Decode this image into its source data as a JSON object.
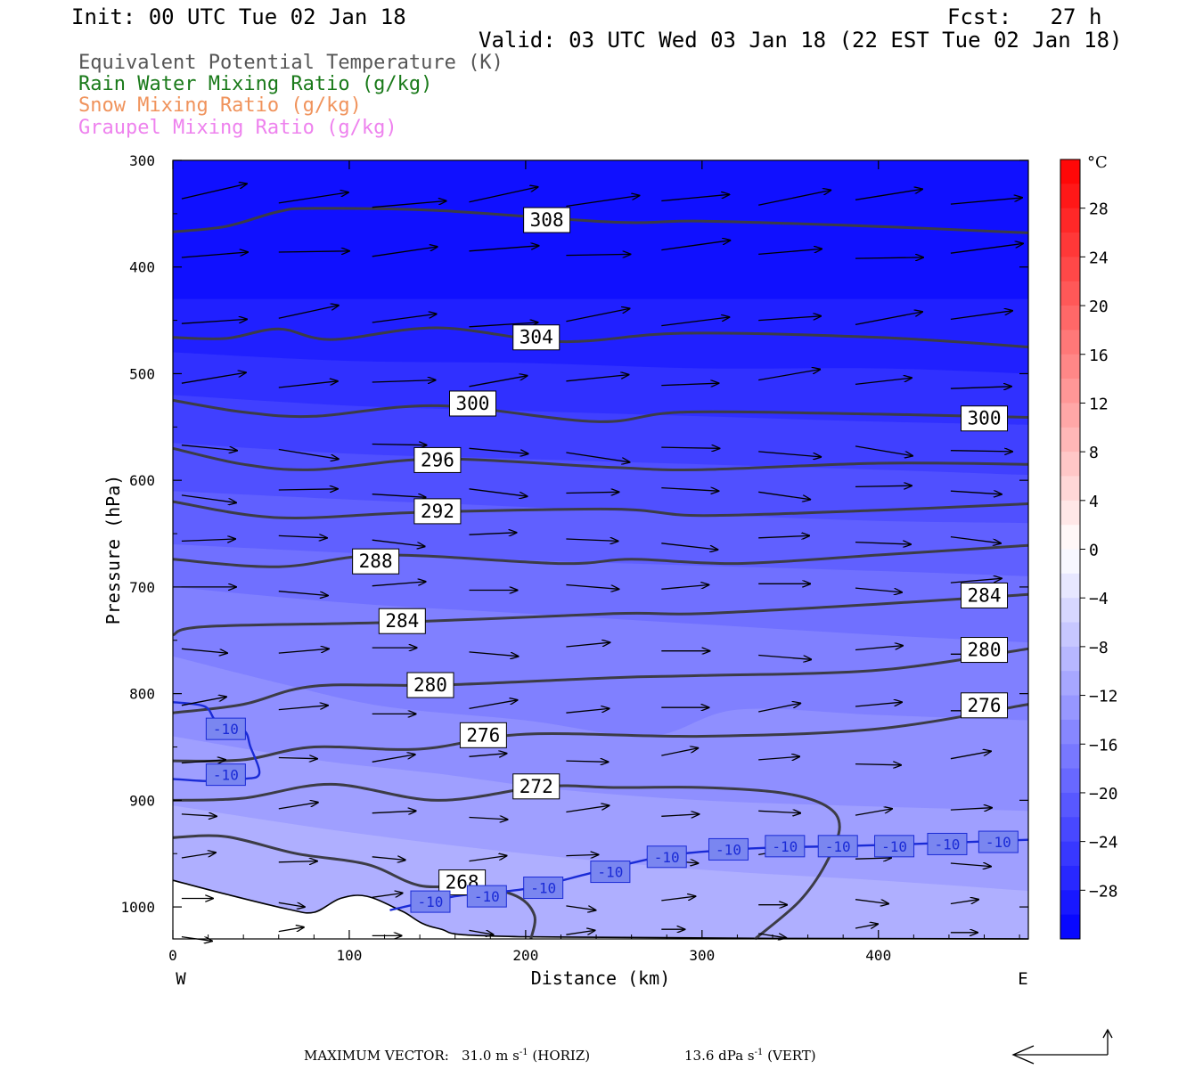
{
  "header": {
    "init": "Init: 00 UTC Tue 02 Jan 18",
    "fcst": "Fcst:   27 h",
    "valid": "Valid: 03 UTC Wed 03 Jan 18 (22 EST Tue 02 Jan 18)"
  },
  "fields": [
    {
      "label": "Equivalent Potential Temperature (K)",
      "color": "#555555"
    },
    {
      "label": "Rain Water Mixing Ratio (g/kg)",
      "color": "#1a7a1a"
    },
    {
      "label": "Snow Mixing Ratio (g/kg)",
      "color": "#f0935c"
    },
    {
      "label": "Graupel Mixing Ratio (g/kg)",
      "color": "#ee82ee"
    }
  ],
  "footer": {
    "label": "MAXIMUM VECTOR:",
    "horiz_value": "31.0 m s",
    "horiz_exp": "-1",
    "horiz_unit": "(HORIZ)",
    "vert_value": "13.6 dPa s",
    "vert_exp": "-1",
    "vert_unit": "(VERT)"
  },
  "chart_data": {
    "type": "cross-section",
    "xlabel": "Distance (km)",
    "ylabel": "Pressure (hPa)",
    "xlim": [
      0,
      485
    ],
    "ylim": [
      300,
      1030
    ],
    "x_ticks": [
      0,
      100,
      200,
      300,
      400
    ],
    "y_ticks": [
      300,
      400,
      500,
      600,
      700,
      800,
      900,
      1000
    ],
    "x_end_labels": {
      "left": "W",
      "right": "E"
    },
    "colorbar": {
      "unit": "°C",
      "ticks": [
        28,
        24,
        20,
        16,
        12,
        8,
        4,
        0,
        -4,
        -8,
        -12,
        -16,
        -20,
        -24,
        -28
      ],
      "range": [
        -32,
        32
      ]
    },
    "temperature_fill_levels": [
      -12,
      -14,
      -16,
      -18,
      -20,
      -22,
      -24,
      -26,
      -28,
      -30
    ],
    "temperature_boundaries": [
      {
        "level": -30,
        "points": [
          [
            0,
            430
          ],
          [
            485,
            430
          ]
        ]
      },
      {
        "level": -28,
        "points": [
          [
            0,
            480
          ],
          [
            100,
            488
          ],
          [
            200,
            490
          ],
          [
            300,
            495
          ],
          [
            400,
            495
          ],
          [
            485,
            500
          ]
        ]
      },
      {
        "level": -26,
        "points": [
          [
            0,
            520
          ],
          [
            100,
            530
          ],
          [
            200,
            535
          ],
          [
            300,
            540
          ],
          [
            400,
            545
          ],
          [
            485,
            548
          ]
        ]
      },
      {
        "level": -24,
        "points": [
          [
            0,
            565
          ],
          [
            100,
            575
          ],
          [
            200,
            580
          ],
          [
            300,
            585
          ],
          [
            400,
            590
          ],
          [
            485,
            595
          ]
        ]
      },
      {
        "level": -22,
        "points": [
          [
            0,
            610
          ],
          [
            100,
            618
          ],
          [
            200,
            625
          ],
          [
            300,
            632
          ],
          [
            400,
            638
          ],
          [
            485,
            640
          ]
        ]
      },
      {
        "level": -20,
        "points": [
          [
            0,
            660
          ],
          [
            100,
            668
          ],
          [
            200,
            675
          ],
          [
            300,
            680
          ],
          [
            400,
            685
          ],
          [
            485,
            690
          ]
        ]
      },
      {
        "level": -18,
        "points": [
          [
            0,
            700
          ],
          [
            100,
            715
          ],
          [
            200,
            725
          ],
          [
            300,
            735
          ],
          [
            400,
            745
          ],
          [
            485,
            752
          ]
        ]
      },
      {
        "level": -16,
        "points": [
          [
            0,
            765
          ],
          [
            60,
            790
          ],
          [
            120,
            812
          ],
          [
            200,
            825
          ],
          [
            270,
            840
          ],
          [
            320,
            815
          ],
          [
            400,
            820
          ],
          [
            485,
            825
          ]
        ]
      },
      {
        "level": -14,
        "points": [
          [
            0,
            840
          ],
          [
            80,
            862
          ],
          [
            150,
            875
          ],
          [
            220,
            890
          ],
          [
            300,
            900
          ],
          [
            380,
            905
          ],
          [
            485,
            910
          ]
        ]
      },
      {
        "level": -12,
        "points": [
          [
            0,
            905
          ],
          [
            100,
            930
          ],
          [
            200,
            950
          ],
          [
            300,
            965
          ],
          [
            400,
            975
          ],
          [
            485,
            985
          ]
        ]
      }
    ],
    "theta_e_contours": [
      {
        "label": "308",
        "points": [
          [
            0,
            367
          ],
          [
            30,
            362
          ],
          [
            60,
            348
          ],
          [
            80,
            345
          ],
          [
            150,
            347
          ],
          [
            250,
            358
          ],
          [
            300,
            357
          ],
          [
            400,
            362
          ],
          [
            485,
            368
          ]
        ],
        "label_positions": [
          [
            212,
            356
          ]
        ]
      },
      {
        "label": "304",
        "points": [
          [
            0,
            466
          ],
          [
            30,
            467
          ],
          [
            60,
            458
          ],
          [
            90,
            468
          ],
          [
            150,
            457
          ],
          [
            220,
            470
          ],
          [
            290,
            462
          ],
          [
            400,
            466
          ],
          [
            485,
            475
          ]
        ],
        "label_positions": [
          [
            206,
            466
          ]
        ]
      },
      {
        "label": "300",
        "points": [
          [
            0,
            525
          ],
          [
            40,
            536
          ],
          [
            80,
            540
          ],
          [
            150,
            530
          ],
          [
            240,
            545
          ],
          [
            290,
            536
          ],
          [
            400,
            538
          ],
          [
            485,
            541
          ]
        ],
        "label_positions": [
          [
            170,
            528
          ],
          [
            460,
            542
          ]
        ]
      },
      {
        "label": "296",
        "points": [
          [
            0,
            570
          ],
          [
            40,
            585
          ],
          [
            80,
            590
          ],
          [
            150,
            580
          ],
          [
            250,
            588
          ],
          [
            300,
            590
          ],
          [
            400,
            584
          ],
          [
            485,
            585
          ]
        ],
        "label_positions": [
          [
            150,
            581
          ]
        ]
      },
      {
        "label": "292",
        "points": [
          [
            0,
            620
          ],
          [
            60,
            635
          ],
          [
            140,
            630
          ],
          [
            250,
            627
          ],
          [
            300,
            633
          ],
          [
            400,
            628
          ],
          [
            485,
            622
          ]
        ],
        "label_positions": [
          [
            150,
            629
          ]
        ]
      },
      {
        "label": "288",
        "points": [
          [
            0,
            674
          ],
          [
            60,
            681
          ],
          [
            120,
            670
          ],
          [
            220,
            678
          ],
          [
            260,
            674
          ],
          [
            320,
            678
          ],
          [
            400,
            670
          ],
          [
            485,
            661
          ]
        ],
        "label_positions": [
          [
            115,
            676
          ]
        ]
      },
      {
        "label": "284",
        "points": [
          [
            0,
            745
          ],
          [
            20,
            737
          ],
          [
            130,
            733
          ],
          [
            250,
            725
          ],
          [
            300,
            725
          ],
          [
            400,
            716
          ],
          [
            485,
            707
          ]
        ],
        "label_positions": [
          [
            130,
            732
          ],
          [
            460,
            708
          ]
        ]
      },
      {
        "label": "280",
        "points": [
          [
            0,
            818
          ],
          [
            40,
            810
          ],
          [
            80,
            793
          ],
          [
            150,
            792
          ],
          [
            250,
            785
          ],
          [
            300,
            783
          ],
          [
            400,
            778
          ],
          [
            485,
            758
          ]
        ],
        "label_positions": [
          [
            146,
            792
          ],
          [
            460,
            759
          ]
        ]
      },
      {
        "label": "276",
        "points": [
          [
            0,
            863
          ],
          [
            40,
            862
          ],
          [
            80,
            850
          ],
          [
            140,
            852
          ],
          [
            200,
            838
          ],
          [
            300,
            840
          ],
          [
            400,
            833
          ],
          [
            485,
            810
          ]
        ],
        "label_positions": [
          [
            176,
            839
          ],
          [
            460,
            811
          ]
        ]
      },
      {
        "label": "272",
        "points": [
          [
            0,
            900
          ],
          [
            40,
            898
          ],
          [
            90,
            885
          ],
          [
            150,
            900
          ],
          [
            210,
            887
          ],
          [
            250,
            888
          ],
          [
            300,
            888
          ],
          [
            345,
            893
          ],
          [
            370,
            905
          ],
          [
            378,
            925
          ],
          [
            370,
            960
          ],
          [
            355,
            995
          ],
          [
            330,
            1030
          ]
        ],
        "label_positions": [
          [
            206,
            887
          ]
        ]
      },
      {
        "label": "268",
        "points": [
          [
            0,
            935
          ],
          [
            30,
            934
          ],
          [
            70,
            950
          ],
          [
            110,
            960
          ],
          [
            140,
            980
          ],
          [
            170,
            980
          ],
          [
            195,
            990
          ],
          [
            205,
            1008
          ],
          [
            203,
            1030
          ]
        ],
        "label_positions": [
          [
            164,
            977
          ]
        ]
      }
    ],
    "temperature_minus10_contours": [
      {
        "label": "-10",
        "points": [
          [
            0,
            808
          ],
          [
            18,
            812
          ],
          [
            25,
            826
          ],
          [
            40,
            834
          ],
          [
            44,
            850
          ],
          [
            49,
            875
          ],
          [
            40,
            880
          ],
          [
            20,
            882
          ],
          [
            0,
            880
          ]
        ],
        "label_positions": [
          [
            30,
            833
          ],
          [
            30,
            876
          ]
        ]
      },
      {
        "label": "-10",
        "points": [
          [
            123,
            1003
          ],
          [
            160,
            990
          ],
          [
            200,
            983
          ],
          [
            240,
            967
          ],
          [
            280,
            952
          ],
          [
            320,
            946
          ],
          [
            350,
            944
          ],
          [
            380,
            943
          ],
          [
            420,
            941
          ],
          [
            485,
            937
          ]
        ],
        "label_positions": [
          [
            146,
            995
          ],
          [
            178,
            990
          ],
          [
            210,
            982
          ],
          [
            248,
            967
          ],
          [
            280,
            953
          ],
          [
            315,
            946
          ],
          [
            347,
            943
          ],
          [
            377,
            943
          ],
          [
            409,
            943
          ],
          [
            439,
            941
          ],
          [
            468,
            939
          ]
        ]
      }
    ],
    "terrain_points": [
      [
        0,
        975
      ],
      [
        30,
        988
      ],
      [
        65,
        1002
      ],
      [
        80,
        1005
      ],
      [
        95,
        992
      ],
      [
        110,
        990
      ],
      [
        130,
        1004
      ],
      [
        150,
        1020
      ],
      [
        200,
        1028
      ],
      [
        485,
        1030
      ]
    ]
  }
}
